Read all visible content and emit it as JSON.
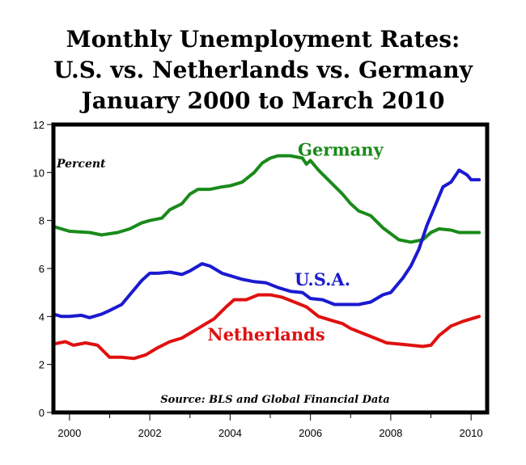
{
  "chart_data": {
    "type": "line",
    "title_lines": [
      "Monthly Unemployment Rates:",
      "U.S. vs. Netherlands vs. Germany",
      "January 2000 to March 2010"
    ],
    "ylabel": "Percent",
    "source": "Source: BLS and Global Financial Data",
    "xlim": [
      1999.6,
      2010.4
    ],
    "ylim": [
      0,
      12
    ],
    "yticks": [
      0,
      2,
      4,
      6,
      8,
      10,
      12
    ],
    "xticks": [
      2000,
      2002,
      2004,
      2006,
      2008,
      2010
    ],
    "grid": false,
    "series": [
      {
        "name": "Germany",
        "color": "#1a8a1a",
        "label_at": [
          2006.75,
          10.7
        ],
        "points": [
          [
            1999.6,
            7.75
          ],
          [
            2000.0,
            7.55
          ],
          [
            2000.5,
            7.5
          ],
          [
            2000.8,
            7.4
          ],
          [
            2001.2,
            7.5
          ],
          [
            2001.5,
            7.65
          ],
          [
            2001.8,
            7.9
          ],
          [
            2002.0,
            8.0
          ],
          [
            2002.3,
            8.1
          ],
          [
            2002.5,
            8.45
          ],
          [
            2002.8,
            8.7
          ],
          [
            2003.0,
            9.1
          ],
          [
            2003.2,
            9.3
          ],
          [
            2003.5,
            9.3
          ],
          [
            2003.8,
            9.4
          ],
          [
            2004.0,
            9.45
          ],
          [
            2004.3,
            9.6
          ],
          [
            2004.6,
            10.0
          ],
          [
            2004.8,
            10.4
          ],
          [
            2005.0,
            10.6
          ],
          [
            2005.2,
            10.7
          ],
          [
            2005.5,
            10.7
          ],
          [
            2005.8,
            10.6
          ],
          [
            2005.9,
            10.35
          ],
          [
            2006.0,
            10.5
          ],
          [
            2006.2,
            10.1
          ],
          [
            2006.5,
            9.6
          ],
          [
            2006.8,
            9.1
          ],
          [
            2007.0,
            8.7
          ],
          [
            2007.2,
            8.4
          ],
          [
            2007.5,
            8.2
          ],
          [
            2007.8,
            7.7
          ],
          [
            2008.0,
            7.45
          ],
          [
            2008.2,
            7.2
          ],
          [
            2008.5,
            7.1
          ],
          [
            2008.8,
            7.2
          ],
          [
            2009.0,
            7.5
          ],
          [
            2009.2,
            7.65
          ],
          [
            2009.5,
            7.6
          ],
          [
            2009.7,
            7.5
          ],
          [
            2010.2,
            7.5
          ]
        ]
      },
      {
        "name": "U.S.A.",
        "color": "#1a1ad0",
        "label_at": [
          2006.3,
          5.3
        ],
        "points": [
          [
            1999.6,
            4.1
          ],
          [
            1999.8,
            4.0
          ],
          [
            2000.0,
            4.0
          ],
          [
            2000.3,
            4.05
          ],
          [
            2000.5,
            3.95
          ],
          [
            2000.8,
            4.1
          ],
          [
            2001.0,
            4.25
          ],
          [
            2001.3,
            4.5
          ],
          [
            2001.5,
            4.9
          ],
          [
            2001.8,
            5.5
          ],
          [
            2002.0,
            5.8
          ],
          [
            2002.2,
            5.8
          ],
          [
            2002.5,
            5.85
          ],
          [
            2002.8,
            5.75
          ],
          [
            2003.0,
            5.9
          ],
          [
            2003.3,
            6.2
          ],
          [
            2003.5,
            6.1
          ],
          [
            2003.8,
            5.8
          ],
          [
            2004.0,
            5.7
          ],
          [
            2004.3,
            5.55
          ],
          [
            2004.6,
            5.45
          ],
          [
            2004.9,
            5.4
          ],
          [
            2005.2,
            5.2
          ],
          [
            2005.5,
            5.05
          ],
          [
            2005.8,
            5.0
          ],
          [
            2006.0,
            4.75
          ],
          [
            2006.3,
            4.7
          ],
          [
            2006.6,
            4.5
          ],
          [
            2006.9,
            4.5
          ],
          [
            2007.2,
            4.5
          ],
          [
            2007.5,
            4.6
          ],
          [
            2007.8,
            4.9
          ],
          [
            2008.0,
            5.0
          ],
          [
            2008.3,
            5.6
          ],
          [
            2008.5,
            6.1
          ],
          [
            2008.7,
            6.8
          ],
          [
            2008.9,
            7.8
          ],
          [
            2009.1,
            8.6
          ],
          [
            2009.3,
            9.4
          ],
          [
            2009.5,
            9.6
          ],
          [
            2009.7,
            10.1
          ],
          [
            2009.9,
            9.9
          ],
          [
            2010.0,
            9.7
          ],
          [
            2010.2,
            9.7
          ]
        ]
      },
      {
        "name": "Netherlands",
        "color": "#e01010",
        "label_at": [
          2004.9,
          3.0
        ],
        "points": [
          [
            1999.6,
            2.85
          ],
          [
            1999.9,
            2.95
          ],
          [
            2000.1,
            2.8
          ],
          [
            2000.4,
            2.9
          ],
          [
            2000.7,
            2.8
          ],
          [
            2001.0,
            2.3
          ],
          [
            2001.3,
            2.3
          ],
          [
            2001.6,
            2.25
          ],
          [
            2001.9,
            2.4
          ],
          [
            2002.2,
            2.7
          ],
          [
            2002.5,
            2.95
          ],
          [
            2002.8,
            3.1
          ],
          [
            2003.0,
            3.3
          ],
          [
            2003.3,
            3.6
          ],
          [
            2003.6,
            3.9
          ],
          [
            2003.9,
            4.4
          ],
          [
            2004.1,
            4.7
          ],
          [
            2004.4,
            4.7
          ],
          [
            2004.7,
            4.9
          ],
          [
            2005.0,
            4.9
          ],
          [
            2005.3,
            4.8
          ],
          [
            2005.6,
            4.6
          ],
          [
            2005.9,
            4.4
          ],
          [
            2006.2,
            4.0
          ],
          [
            2006.5,
            3.85
          ],
          [
            2006.8,
            3.7
          ],
          [
            2007.0,
            3.5
          ],
          [
            2007.3,
            3.3
          ],
          [
            2007.6,
            3.1
          ],
          [
            2007.9,
            2.9
          ],
          [
            2008.2,
            2.85
          ],
          [
            2008.5,
            2.8
          ],
          [
            2008.8,
            2.75
          ],
          [
            2009.0,
            2.8
          ],
          [
            2009.2,
            3.2
          ],
          [
            2009.5,
            3.6
          ],
          [
            2009.8,
            3.8
          ],
          [
            2010.2,
            4.0
          ]
        ]
      }
    ]
  }
}
